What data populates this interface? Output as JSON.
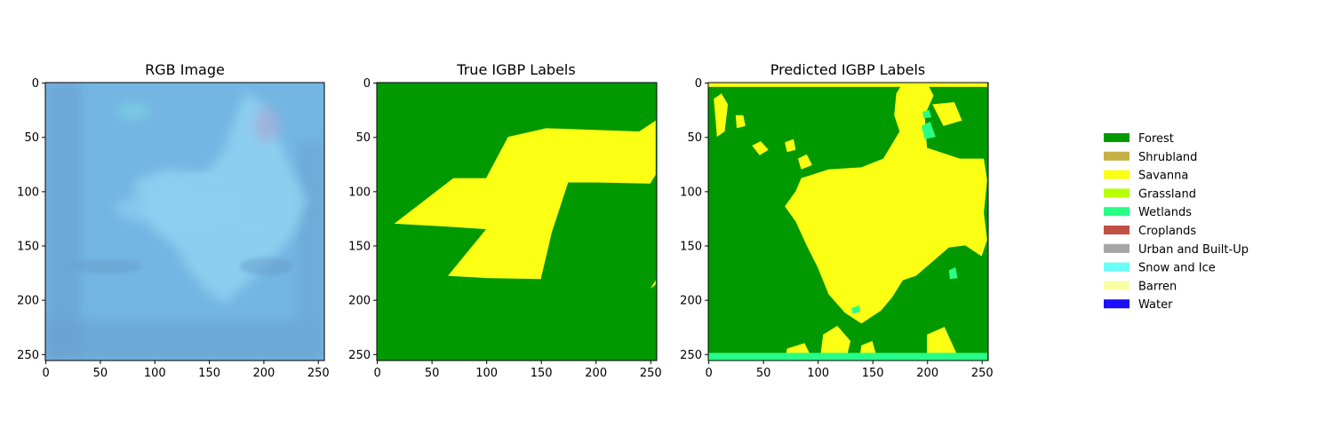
{
  "chart_data": [
    {
      "type": "heatmap",
      "title": "RGB Image",
      "xlim": [
        0,
        255
      ],
      "ylim": [
        255,
        0
      ],
      "xticks": [
        0,
        50,
        100,
        150,
        200,
        250
      ],
      "yticks": [
        0,
        50,
        100,
        150,
        200,
        250
      ],
      "content": "satellite image",
      "colors": {
        "base": "#74b6e3",
        "light": "#8fd0f1",
        "dark": "#679fcd",
        "cyan": "#7ed6e6",
        "violet": "#a2acd8"
      }
    },
    {
      "type": "heatmap",
      "title": "True IGBP Labels",
      "xlim": [
        0,
        255
      ],
      "ylim": [
        255,
        0
      ],
      "xticks": [
        0,
        50,
        100,
        150,
        200,
        250
      ],
      "yticks": [
        0,
        50,
        100,
        150,
        200,
        250
      ],
      "background_class": "Forest",
      "regions": [
        {
          "class": "Savanna",
          "polygon": [
            [
              16,
              130
            ],
            [
              70,
              88
            ],
            [
              100,
              88
            ],
            [
              120,
              50
            ],
            [
              155,
              42
            ],
            [
              240,
              45
            ],
            [
              255,
              35
            ],
            [
              255,
              85
            ],
            [
              250,
              93
            ],
            [
              200,
              92
            ],
            [
              175,
              92
            ],
            [
              160,
              138
            ],
            [
              150,
              181
            ],
            [
              100,
              180
            ],
            [
              65,
              178
            ],
            [
              100,
              135
            ],
            [
              70,
              133
            ]
          ]
        },
        {
          "class": "Savanna",
          "polygon": [
            [
              250,
              190
            ],
            [
              255,
              186
            ],
            [
              255,
              182
            ]
          ]
        }
      ]
    },
    {
      "type": "heatmap",
      "title": "Predicted IGBP Labels",
      "xlim": [
        0,
        255
      ],
      "ylim": [
        255,
        0
      ],
      "xticks": [
        0,
        50,
        100,
        150,
        200,
        250
      ],
      "yticks": [
        0,
        50,
        100,
        150,
        200,
        250
      ],
      "background_class": "Forest",
      "regions": [
        {
          "class": "Savanna",
          "polygon": [
            [
              85,
              88
            ],
            [
              110,
              80
            ],
            [
              140,
              78
            ],
            [
              160,
              70
            ],
            [
              175,
              45
            ],
            [
              170,
              30
            ],
            [
              172,
              10
            ],
            [
              178,
              0
            ],
            [
              200,
              0
            ],
            [
              206,
              12
            ],
            [
              198,
              30
            ],
            [
              200,
              60
            ],
            [
              230,
              70
            ],
            [
              252,
              70
            ],
            [
              255,
              90
            ],
            [
              252,
              120
            ],
            [
              255,
              145
            ],
            [
              250,
              160
            ],
            [
              235,
              150
            ],
            [
              220,
              152
            ],
            [
              205,
              165
            ],
            [
              190,
              178
            ],
            [
              178,
              182
            ],
            [
              168,
              198
            ],
            [
              158,
              210
            ],
            [
              140,
              222
            ],
            [
              125,
              212
            ],
            [
              110,
              195
            ],
            [
              100,
              170
            ],
            [
              90,
              150
            ],
            [
              80,
              128
            ],
            [
              70,
              114
            ],
            [
              80,
              100
            ]
          ]
        },
        {
          "class": "Savanna",
          "polygon": [
            [
              5,
              15
            ],
            [
              12,
              10
            ],
            [
              18,
              20
            ],
            [
              15,
              45
            ],
            [
              8,
              50
            ]
          ]
        },
        {
          "class": "Savanna",
          "polygon": [
            [
              25,
              30
            ],
            [
              32,
              30
            ],
            [
              34,
              40
            ],
            [
              26,
              42
            ]
          ]
        },
        {
          "class": "Savanna",
          "polygon": [
            [
              40,
              58
            ],
            [
              48,
              54
            ],
            [
              55,
              62
            ],
            [
              47,
              67
            ]
          ]
        },
        {
          "class": "Savanna",
          "polygon": [
            [
              82,
              70
            ],
            [
              90,
              66
            ],
            [
              95,
              76
            ],
            [
              85,
              80
            ]
          ]
        },
        {
          "class": "Savanna",
          "polygon": [
            [
              70,
              55
            ],
            [
              78,
              52
            ],
            [
              80,
              62
            ],
            [
              72,
              64
            ]
          ]
        },
        {
          "class": "Savanna",
          "polygon": [
            [
              205,
              20
            ],
            [
              225,
              18
            ],
            [
              232,
              35
            ],
            [
              215,
              40
            ]
          ]
        },
        {
          "class": "Savanna",
          "polygon": [
            [
              72,
              245
            ],
            [
              88,
              240
            ],
            [
              96,
              256
            ],
            [
              70,
              256
            ]
          ]
        },
        {
          "class": "Savanna",
          "polygon": [
            [
              105,
              232
            ],
            [
              118,
              224
            ],
            [
              130,
              238
            ],
            [
              126,
              256
            ],
            [
              102,
              256
            ]
          ]
        },
        {
          "class": "Savanna",
          "polygon": [
            [
              140,
              242
            ],
            [
              150,
              238
            ],
            [
              155,
              256
            ],
            [
              138,
              256
            ]
          ]
        },
        {
          "class": "Savanna",
          "polygon": [
            [
              200,
              232
            ],
            [
              216,
              225
            ],
            [
              230,
              256
            ],
            [
              200,
              256
            ]
          ]
        },
        {
          "class": "Savanna",
          "polygon": [
            [
              0,
              0
            ],
            [
              255,
              0
            ],
            [
              255,
              4
            ],
            [
              0,
              4
            ]
          ]
        },
        {
          "class": "Wetlands",
          "polygon": [
            [
              0,
              249
            ],
            [
              255,
              249
            ],
            [
              255,
              256
            ],
            [
              0,
              256
            ]
          ]
        },
        {
          "class": "Wetlands",
          "polygon": [
            [
              195,
              40
            ],
            [
              203,
              36
            ],
            [
              208,
              50
            ],
            [
              198,
              52
            ]
          ]
        },
        {
          "class": "Wetlands",
          "polygon": [
            [
              196,
              27
            ],
            [
              202,
              25
            ],
            [
              204,
              32
            ],
            [
              197,
              33
            ]
          ]
        },
        {
          "class": "Wetlands",
          "polygon": [
            [
              220,
              173
            ],
            [
              226,
              170
            ],
            [
              228,
              180
            ],
            [
              221,
              181
            ]
          ]
        },
        {
          "class": "Wetlands",
          "polygon": [
            [
              131,
              208
            ],
            [
              138,
              205
            ],
            [
              139,
              211
            ],
            [
              132,
              213
            ]
          ]
        }
      ]
    }
  ],
  "legend": {
    "entries": [
      {
        "label": "Forest",
        "color": "#009900"
      },
      {
        "label": "Shrubland",
        "color": "#c6b044"
      },
      {
        "label": "Savanna",
        "color": "#fbff13"
      },
      {
        "label": "Grassland",
        "color": "#b6ff05"
      },
      {
        "label": "Wetlands",
        "color": "#27ff87"
      },
      {
        "label": "Croplands",
        "color": "#c24f44"
      },
      {
        "label": "Urban and Built-Up",
        "color": "#a5a5a5"
      },
      {
        "label": "Snow and Ice",
        "color": "#69fff8"
      },
      {
        "label": "Barren",
        "color": "#f9ffa4"
      },
      {
        "label": "Water",
        "color": "#1c0dff"
      }
    ]
  }
}
